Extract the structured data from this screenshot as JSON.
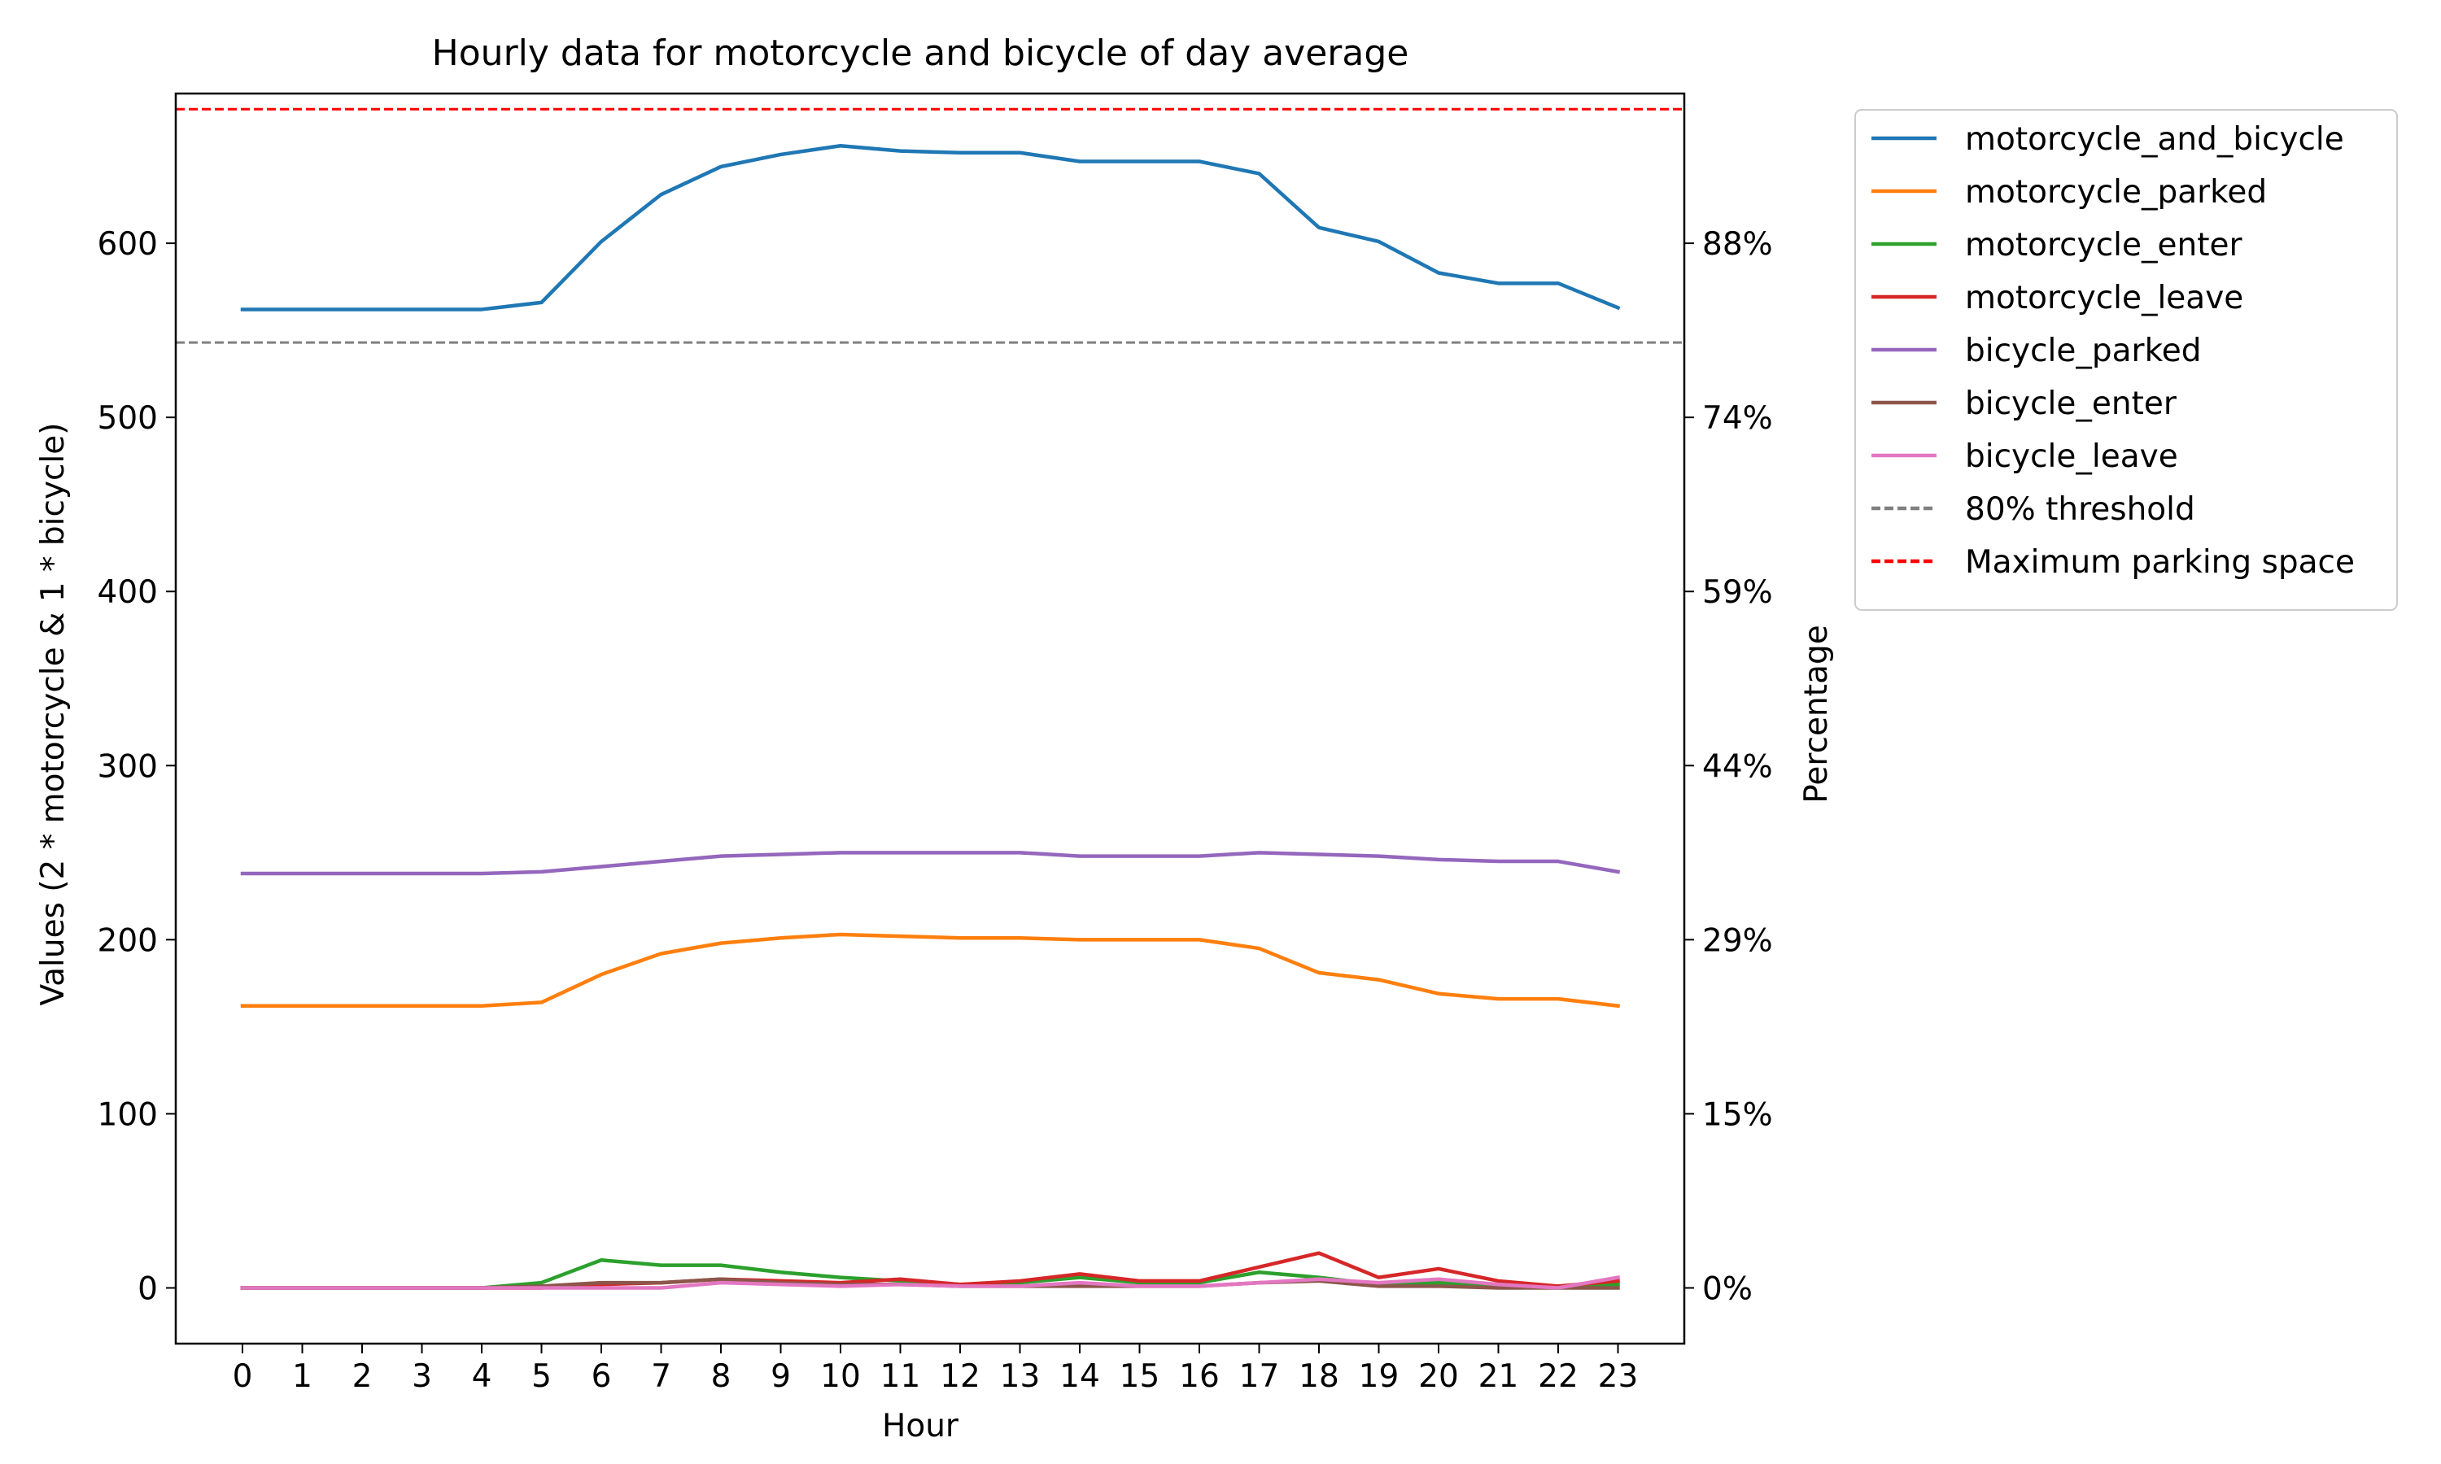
{
  "chart_data": {
    "type": "line",
    "title": "Hourly data for motorcycle and bicycle of day average",
    "xlabel": "Hour",
    "ylabel": "Values (2 * motorcycle & 1 * bicycle)",
    "y2label": "Percentage",
    "x": [
      0,
      1,
      2,
      3,
      4,
      5,
      6,
      7,
      8,
      9,
      10,
      11,
      12,
      13,
      14,
      15,
      16,
      17,
      18,
      19,
      20,
      21,
      22,
      23
    ],
    "ylim": [
      -32,
      686
    ],
    "yticks": [
      0,
      100,
      200,
      300,
      400,
      500,
      600
    ],
    "y2ticks": [
      {
        "value": 0,
        "label": "0%"
      },
      {
        "value": 100,
        "label": "15%"
      },
      {
        "value": 200,
        "label": "29%"
      },
      {
        "value": 300,
        "label": "44%"
      },
      {
        "value": 400,
        "label": "59%"
      },
      {
        "value": 500,
        "label": "74%"
      },
      {
        "value": 600,
        "label": "88%"
      }
    ],
    "grid": false,
    "legend_position": "outside-right-top",
    "series": [
      {
        "name": "motorcycle_and_bicycle",
        "color": "#1f77b4",
        "dashed": false,
        "values": [
          562,
          562,
          562,
          562,
          562,
          566,
          601,
          628,
          644,
          651,
          656,
          653,
          652,
          652,
          647,
          647,
          647,
          640,
          609,
          601,
          583,
          577,
          577,
          563
        ]
      },
      {
        "name": "motorcycle_parked",
        "color": "#ff7f0e",
        "dashed": false,
        "values": [
          162,
          162,
          162,
          162,
          162,
          164,
          180,
          192,
          198,
          201,
          203,
          202,
          201,
          201,
          200,
          200,
          200,
          195,
          181,
          177,
          169,
          166,
          166,
          162
        ]
      },
      {
        "name": "motorcycle_enter",
        "color": "#2ca02c",
        "dashed": false,
        "values": [
          0,
          0,
          0,
          0,
          0,
          3,
          16,
          13,
          13,
          9,
          6,
          4,
          2,
          3,
          6,
          3,
          3,
          9,
          6,
          2,
          3,
          1,
          0,
          2
        ]
      },
      {
        "name": "motorcycle_leave",
        "color": "#d62728",
        "dashed": false,
        "values": [
          0,
          0,
          0,
          0,
          0,
          0,
          2,
          3,
          5,
          4,
          3,
          5,
          2,
          4,
          8,
          4,
          4,
          12,
          20,
          6,
          11,
          4,
          1,
          4
        ]
      },
      {
        "name": "bicycle_parked",
        "color": "#9467bd",
        "dashed": false,
        "values": [
          238,
          238,
          238,
          238,
          238,
          239,
          242,
          245,
          248,
          249,
          250,
          250,
          250,
          250,
          248,
          248,
          248,
          250,
          249,
          248,
          246,
          245,
          245,
          239
        ]
      },
      {
        "name": "bicycle_enter",
        "color": "#8c564b",
        "dashed": false,
        "values": [
          0,
          0,
          0,
          0,
          0,
          1,
          3,
          3,
          5,
          3,
          2,
          2,
          1,
          1,
          1,
          1,
          1,
          3,
          4,
          1,
          1,
          0,
          0,
          0
        ]
      },
      {
        "name": "bicycle_leave",
        "color": "#e377c2",
        "dashed": false,
        "values": [
          0,
          0,
          0,
          0,
          0,
          0,
          0,
          0,
          3,
          2,
          1,
          2,
          1,
          1,
          3,
          1,
          1,
          3,
          5,
          3,
          5,
          2,
          0,
          6
        ]
      }
    ],
    "reference_lines": [
      {
        "name": "80% threshold",
        "value": 543,
        "color": "#808080",
        "dashed": true
      },
      {
        "name": "Maximum parking space",
        "value": 677,
        "color": "#ff0000",
        "dashed": true
      }
    ]
  }
}
